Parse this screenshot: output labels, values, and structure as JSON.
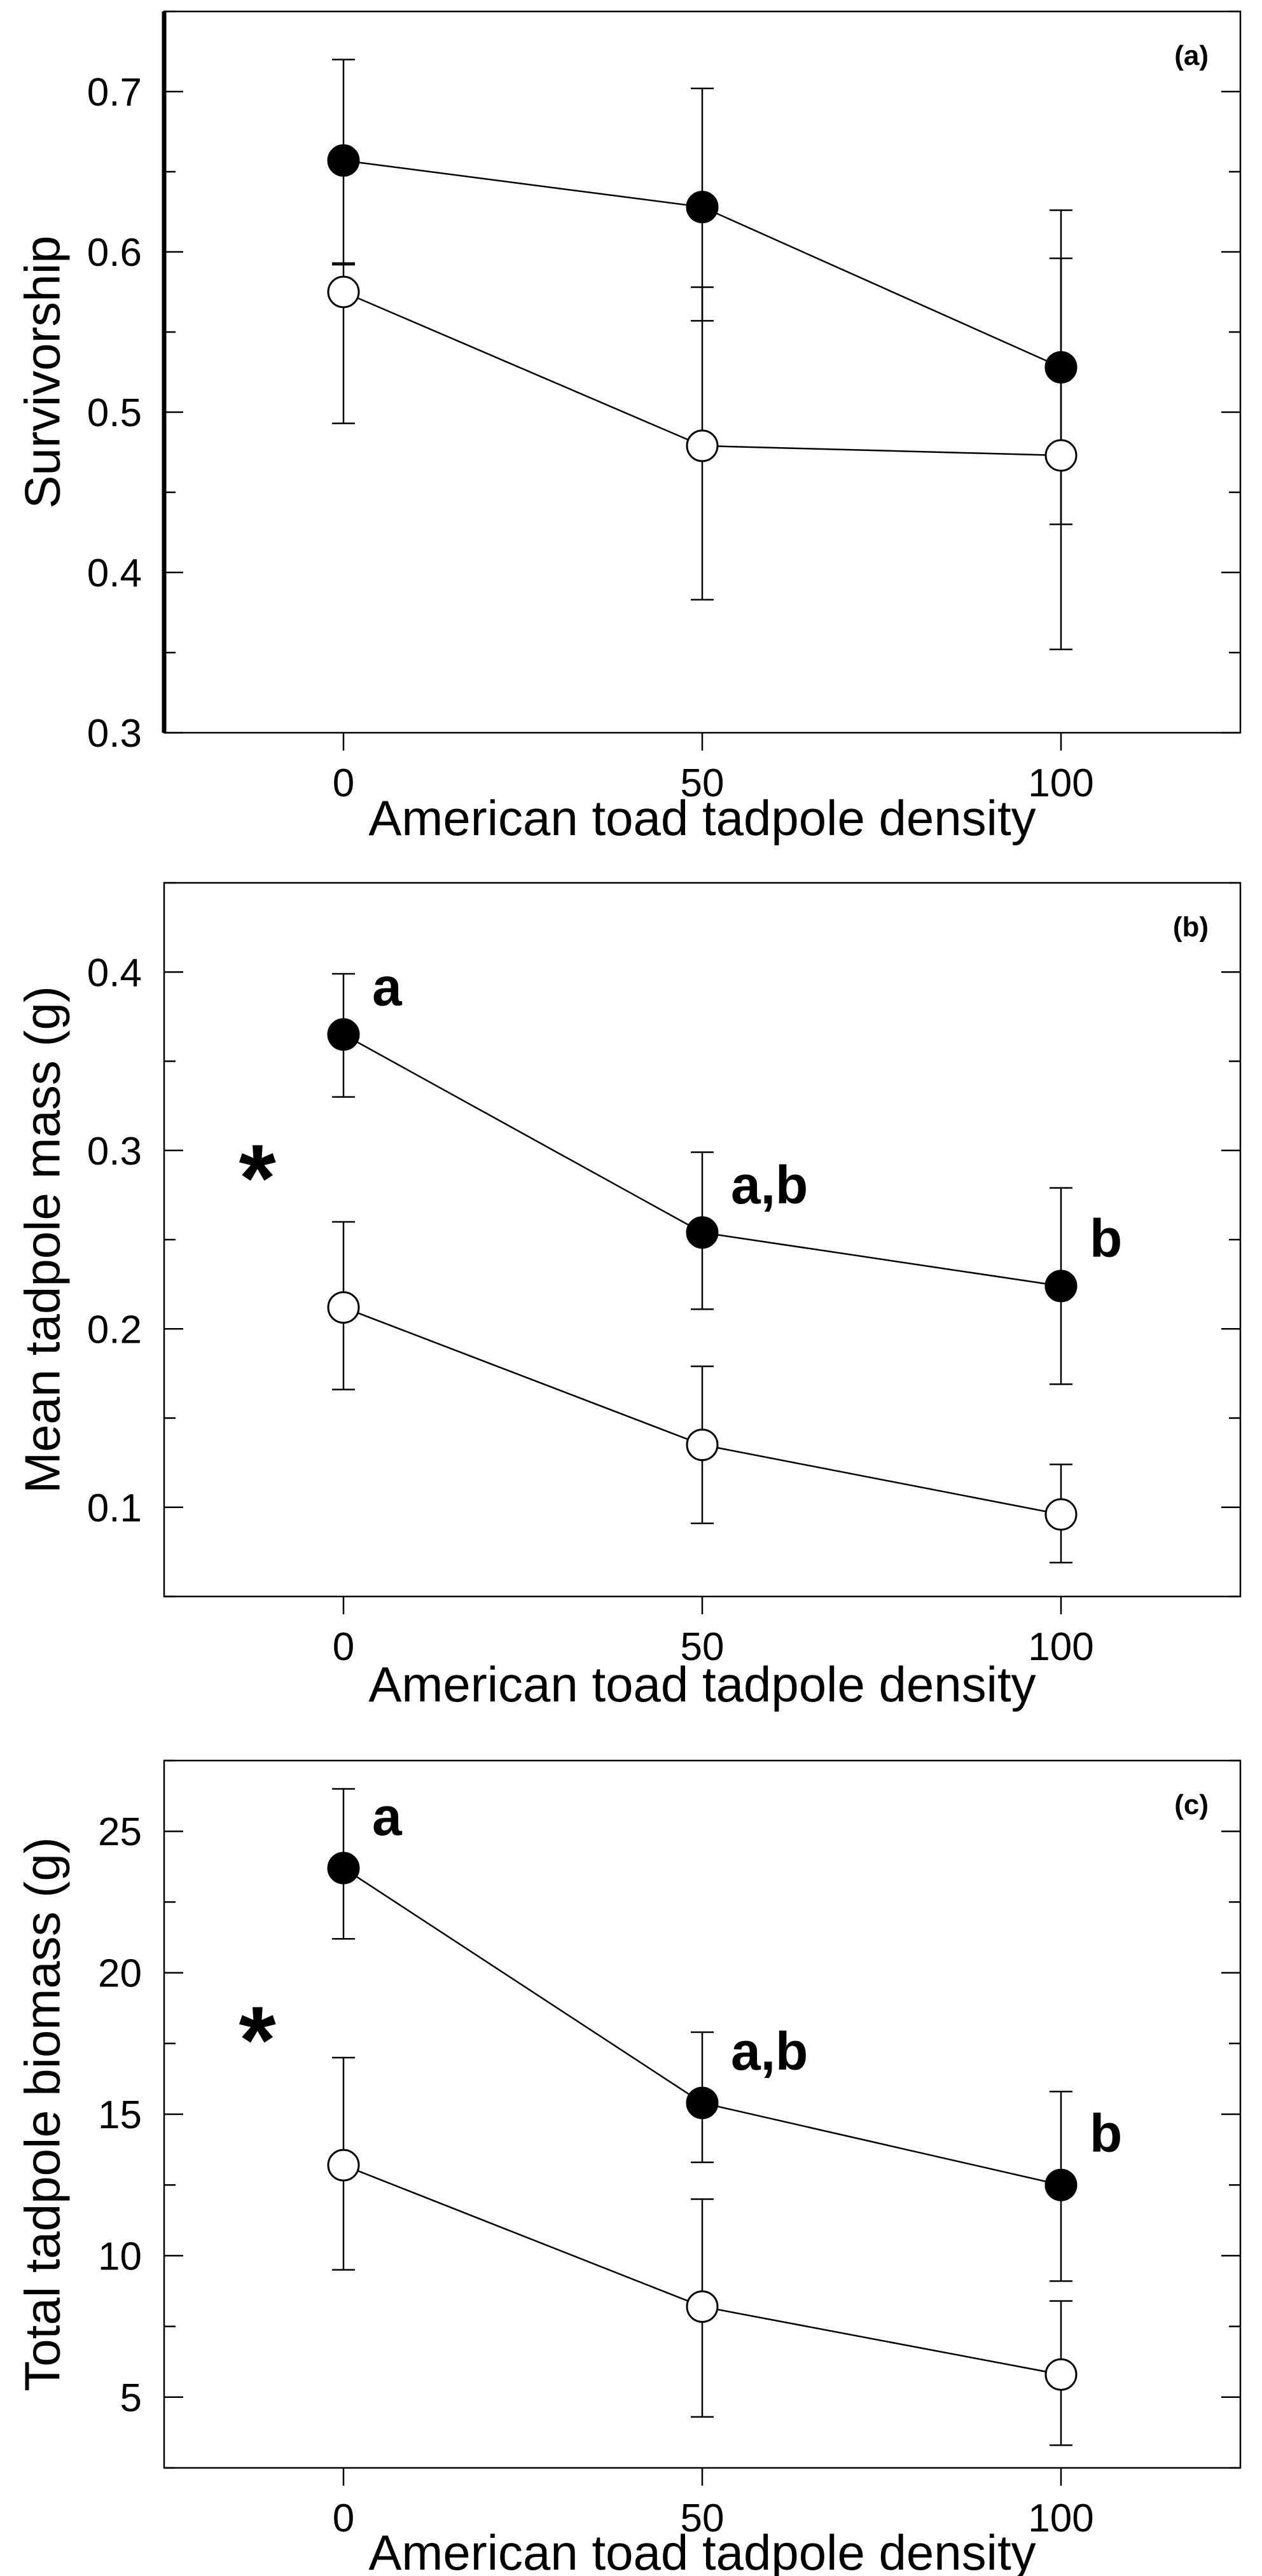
{
  "chart_data": [
    {
      "type": "line",
      "panel_label": "(a)",
      "xlabel": "American toad tadpole density",
      "ylabel": "Survivorship",
      "x": [
        0,
        50,
        100
      ],
      "x_tick_labels": [
        "0",
        "50",
        "100"
      ],
      "xlim": [
        -25,
        125
      ],
      "ylim": [
        0.3,
        0.75
      ],
      "y_ticks": [
        0.3,
        0.4,
        0.5,
        0.6,
        0.7
      ],
      "y_tick_labels": [
        "0.3",
        "0.4",
        "0.5",
        "0.6",
        "0.7"
      ],
      "grid": false,
      "series": [
        {
          "marker": "filled",
          "color": "#000000",
          "y": [
            0.657,
            0.628,
            0.528
          ],
          "err_low": [
            0.593,
            0.557,
            0.43
          ],
          "err_high": [
            0.72,
            0.702,
            0.626
          ]
        },
        {
          "marker": "open",
          "color": "#ffffff",
          "y": [
            0.575,
            0.479,
            0.473
          ],
          "err_low": [
            0.493,
            0.383,
            0.352
          ],
          "err_high": [
            0.592,
            0.578,
            0.596
          ]
        }
      ],
      "annotations": []
    },
    {
      "type": "line",
      "panel_label": "(b)",
      "xlabel": "American toad tadpole density",
      "ylabel": "Mean tadpole mass (g)",
      "x": [
        0,
        50,
        100
      ],
      "x_tick_labels": [
        "0",
        "50",
        "100"
      ],
      "xlim": [
        -25,
        125
      ],
      "ylim": [
        0.05,
        0.45
      ],
      "y_ticks": [
        0.1,
        0.2,
        0.3,
        0.4
      ],
      "y_tick_labels": [
        "0.1",
        "0.2",
        "0.3",
        "0.4"
      ],
      "grid": false,
      "series": [
        {
          "marker": "filled",
          "color": "#000000",
          "y": [
            0.365,
            0.254,
            0.224
          ],
          "err_low": [
            0.33,
            0.211,
            0.169
          ],
          "err_high": [
            0.399,
            0.299,
            0.279
          ]
        },
        {
          "marker": "open",
          "color": "#ffffff",
          "y": [
            0.212,
            0.135,
            0.096
          ],
          "err_low": [
            0.166,
            0.091,
            0.069
          ],
          "err_high": [
            0.26,
            0.179,
            0.124
          ]
        }
      ],
      "annotations": [
        {
          "text": "a",
          "x": 0,
          "series": 0
        },
        {
          "text": "a,b",
          "x": 50,
          "series": 0
        },
        {
          "text": "b",
          "x": 100,
          "series": 0
        },
        {
          "text": "*",
          "x": -12,
          "y": 0.3
        }
      ]
    },
    {
      "type": "line",
      "panel_label": "(c)",
      "xlabel": "American toad tadpole density",
      "ylabel": "Total tadpole biomass (g)",
      "x": [
        0,
        50,
        100
      ],
      "x_tick_labels": [
        "0",
        "50",
        "100"
      ],
      "xlim": [
        -25,
        125
      ],
      "ylim": [
        2.5,
        27.5
      ],
      "y_ticks": [
        5,
        10,
        15,
        20,
        25
      ],
      "y_tick_labels": [
        "5",
        "10",
        "15",
        "20",
        "25"
      ],
      "grid": false,
      "series": [
        {
          "marker": "filled",
          "color": "#000000",
          "y": [
            23.7,
            15.4,
            12.5
          ],
          "err_low": [
            21.2,
            13.3,
            9.1
          ],
          "err_high": [
            26.5,
            17.9,
            15.8
          ]
        },
        {
          "marker": "open",
          "color": "#ffffff",
          "y": [
            13.2,
            8.2,
            5.8
          ],
          "err_low": [
            9.5,
            4.3,
            3.3
          ],
          "err_high": [
            17.0,
            12.0,
            8.4
          ]
        }
      ],
      "annotations": [
        {
          "text": "a",
          "x": 0,
          "series": 0
        },
        {
          "text": "a,b",
          "x": 50,
          "series": 0
        },
        {
          "text": "b",
          "x": 100,
          "series": 0
        },
        {
          "text": "*",
          "x": -12,
          "y": 18.6
        }
      ]
    }
  ]
}
